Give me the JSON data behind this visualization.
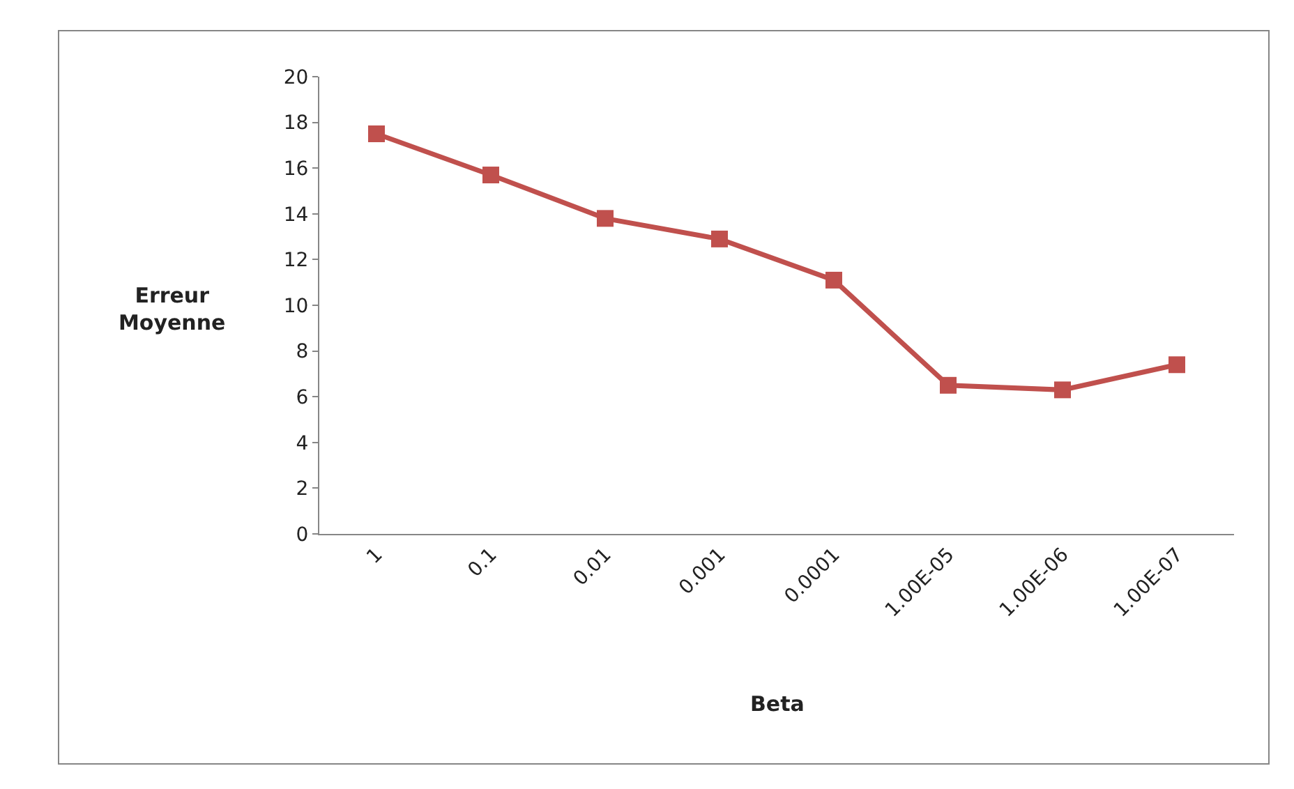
{
  "chart_data": {
    "type": "line",
    "xlabel": "Beta",
    "ylabel": "Erreur Moyenne",
    "categories": [
      "1",
      "0.1",
      "0.01",
      "0.001",
      "0.0001",
      "1.00E-05",
      "1.00E-06",
      "1.00E-07"
    ],
    "series": [
      {
        "color": "#c0504d",
        "values": [
          17.5,
          15.7,
          13.8,
          12.9,
          11.1,
          6.5,
          6.3,
          7.4
        ]
      }
    ],
    "ylim": [
      0,
      20
    ],
    "yticks": [
      0,
      2,
      4,
      6,
      8,
      10,
      12,
      14,
      16,
      18,
      20
    ],
    "marker": "square",
    "line_style": "solid"
  }
}
